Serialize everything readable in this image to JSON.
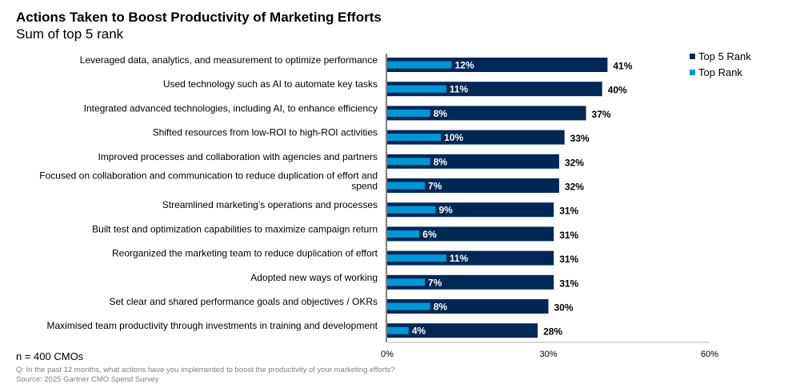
{
  "chart_data": {
    "type": "bar",
    "orientation": "horizontal",
    "title": "Actions Taken to Boost Productivity of Marketing Efforts",
    "subtitle": "Sum of top 5 rank",
    "xlabel": "",
    "ylabel": "",
    "xlim": [
      0,
      60
    ],
    "x_ticks": [
      "0%",
      "30%",
      "60%"
    ],
    "x_tick_values": [
      0,
      30,
      60
    ],
    "grid": false,
    "legend_position": "top-right",
    "categories": [
      "Leveraged data, analytics, and measurement to optimize performance",
      "Used technology such as AI to automate key tasks",
      "Integrated advanced technologies, including AI, to enhance efficiency",
      "Shifted resources from low-ROI to high-ROI activities",
      "Improved processes and collaboration with agencies and partners",
      "Focused on collaboration and communication to reduce duplication of effort and spend",
      "Streamlined marketing’s operations and processes",
      "Built test and optimization capabilities to maximize campaign return",
      "Reorganized the marketing team to reduce duplication of effort",
      "Adopted new ways of working",
      "Set clear and shared performance goals and objectives / OKRs",
      "Maximised team productivity through investments in training and development"
    ],
    "category_lines": [
      [
        "Leveraged data, analytics, and measurement to optimize performance"
      ],
      [
        "Used technology such as AI to automate key tasks"
      ],
      [
        "Integrated advanced technologies, including AI, to enhance efficiency"
      ],
      [
        "Shifted resources from low-ROI to high-ROI activities"
      ],
      [
        "Improved processes and collaboration with agencies and partners"
      ],
      [
        "Focused on collaboration and communication to reduce duplication of effort and",
        "spend"
      ],
      [
        "Streamlined marketing’s operations and processes"
      ],
      [
        "Built test and optimization capabilities to maximize campaign return"
      ],
      [
        "Reorganized the marketing team to reduce duplication of effort"
      ],
      [
        "Adopted new ways of working"
      ],
      [
        "Set clear and shared performance goals and objectives / OKRs"
      ],
      [
        "Maximised team productivity through investments in training and development"
      ]
    ],
    "series": [
      {
        "name": "Top 5 Rank",
        "color": "#002855",
        "values": [
          41,
          40,
          37,
          33,
          32,
          32,
          31,
          31,
          31,
          31,
          30,
          28
        ],
        "labels": [
          "41%",
          "40%",
          "37%",
          "33%",
          "32%",
          "32%",
          "31%",
          "31%",
          "31%",
          "31%",
          "30%",
          "28%"
        ]
      },
      {
        "name": "Top Rank",
        "color": "#0096D6",
        "values": [
          12,
          11,
          8,
          10,
          8,
          7,
          9,
          6,
          11,
          7,
          8,
          4
        ],
        "labels": [
          "12%",
          "11%",
          "8%",
          "10%",
          "8%",
          "7%",
          "9%",
          "6%",
          "11%",
          "7%",
          "8%",
          "4%"
        ]
      }
    ]
  },
  "notes": {
    "n": "n = 400 CMOs",
    "question": "Q: In the past 12 months, what actions have you implemented to boost the productivity of your marketing efforts?",
    "source": "Source: 2025 Gartner CMO Spend Survey"
  },
  "colors": {
    "axis": "#808080",
    "axis_bottom": "#d9d9d9"
  }
}
